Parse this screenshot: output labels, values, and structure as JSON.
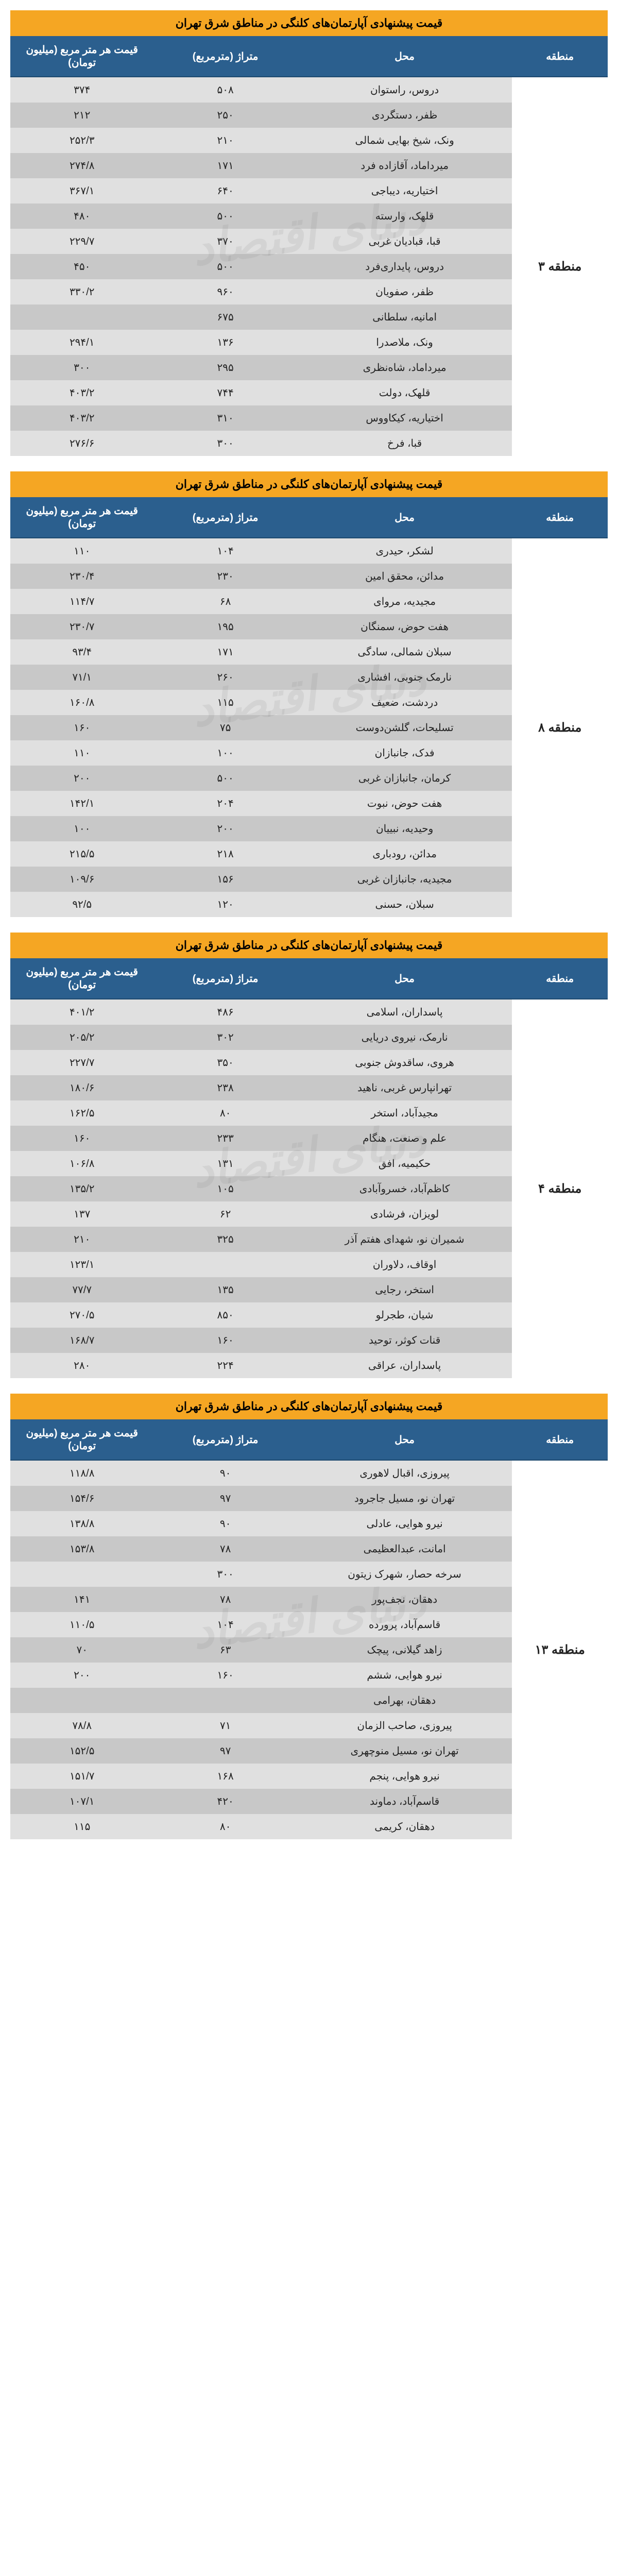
{
  "watermark_text": "دنیای اقتصاد",
  "colors": {
    "title_bg": "#f5a623",
    "header_bg": "#2b5f8e",
    "header_fg": "#ffffff",
    "row_odd": "#e0e0e0",
    "row_even": "#c8c8c8",
    "region_bg": "#ffffff"
  },
  "columns": {
    "region": "منطقه",
    "place": "محل",
    "area": "متراژ (مترمربع)",
    "price": "قیمت هر متر مربع (میلیون تومان)"
  },
  "tables": [
    {
      "title": "قیمت پیشنهادی آپارتمان‌های کلنگی در مناطق شرق تهران",
      "region": "منطقه ۳",
      "rows": [
        {
          "place": "دروس، راستوان",
          "area": "۵۰۸",
          "price": "۳۷۴"
        },
        {
          "place": "ظفر، دستگردی",
          "area": "۲۵۰",
          "price": "۲۱۲"
        },
        {
          "place": "ونک، شیخ بهایی شمالی",
          "area": "۲۱۰",
          "price": "۲۵۲/۳"
        },
        {
          "place": "میرداماد، آقازاده فرد",
          "area": "۱۷۱",
          "price": "۲۷۴/۸"
        },
        {
          "place": "اختیاریه، دیباجی",
          "area": "۶۴۰",
          "price": "۳۶۷/۱"
        },
        {
          "place": "قلهک، وارسته",
          "area": "۵۰۰",
          "price": "۴۸۰"
        },
        {
          "place": "قبا، قبادیان غربی",
          "area": "۳۷۰",
          "price": "۲۲۹/۷"
        },
        {
          "place": "دروس، پایداری‌فرد",
          "area": "۵۰۰",
          "price": "۴۵۰"
        },
        {
          "place": "ظفر، صفویان",
          "area": "۹۶۰",
          "price": "۳۳۰/۲"
        },
        {
          "place": "امانیه، سلطانی",
          "area": "۶۷۵",
          "price": ""
        },
        {
          "place": "ونک، ملاصدرا",
          "area": "۱۳۶",
          "price": "۲۹۴/۱"
        },
        {
          "place": "میرداماد، شاه‌نظری",
          "area": "۲۹۵",
          "price": "۳۰۰"
        },
        {
          "place": "قلهک، دولت",
          "area": "۷۴۴",
          "price": "۴۰۳/۲"
        },
        {
          "place": "اختیاریه، کیکاووس",
          "area": "۳۱۰",
          "price": "۴۰۳/۲"
        },
        {
          "place": "قبا، فرخ",
          "area": "۳۰۰",
          "price": "۲۷۶/۶"
        }
      ]
    },
    {
      "title": "قیمت پیشنهادی آپارتمان‌های کلنگی در مناطق شرق تهران",
      "region": "منطقه ۸",
      "rows": [
        {
          "place": "لشکر، حیدری",
          "area": "۱۰۴",
          "price": "۱۱۰"
        },
        {
          "place": "مدائن، محقق امین",
          "area": "۲۳۰",
          "price": "۲۳۰/۴"
        },
        {
          "place": "مجیدیه، مروای",
          "area": "۶۸",
          "price": "۱۱۴/۷"
        },
        {
          "place": "هفت حوض، سمنگان",
          "area": "۱۹۵",
          "price": "۲۳۰/۷"
        },
        {
          "place": "سبلان شمالی، سادگی",
          "area": "۱۷۱",
          "price": "۹۳/۴"
        },
        {
          "place": "نارمک جنوبی، افشاری",
          "area": "۲۶۰",
          "price": "۷۱/۱"
        },
        {
          "place": "دردشت، ضعیف",
          "area": "۱۱۵",
          "price": "۱۶۰/۸"
        },
        {
          "place": "تسلیحات، گلشن‌دوست",
          "area": "۷۵",
          "price": "۱۶۰"
        },
        {
          "place": "فدک، جانبازان",
          "area": "۱۰۰",
          "price": "۱۱۰"
        },
        {
          "place": "کرمان، جانبازان غربی",
          "area": "۵۰۰",
          "price": "۲۰۰"
        },
        {
          "place": "هفت حوض، نبوت",
          "area": "۲۰۴",
          "price": "۱۴۲/۱"
        },
        {
          "place": "وحیدیه، نبییان",
          "area": "۲۰۰",
          "price": "۱۰۰"
        },
        {
          "place": "مدائن، رودباری",
          "area": "۲۱۸",
          "price": "۲۱۵/۵"
        },
        {
          "place": "مجیدیه، جانبازان غربی",
          "area": "۱۵۶",
          "price": "۱۰۹/۶"
        },
        {
          "place": "سبلان، حسنی",
          "area": "۱۲۰",
          "price": "۹۲/۵"
        }
      ]
    },
    {
      "title": "قیمت پیشنهادی آپارتمان‌های کلنگی در مناطق شرق تهران",
      "region": "منطقه ۴",
      "rows": [
        {
          "place": "پاسداران، اسلامی",
          "area": "۴۸۶",
          "price": "۴۰۱/۲"
        },
        {
          "place": "نارمک، نیروی دریایی",
          "area": "۳۰۲",
          "price": "۲۰۵/۲"
        },
        {
          "place": "هروی، ساقدوش جنوبی",
          "area": "۳۵۰",
          "price": "۲۲۷/۷"
        },
        {
          "place": "تهرانپارس غربی، ناهید",
          "area": "۲۳۸",
          "price": "۱۸۰/۶"
        },
        {
          "place": "مجیدآباد، استخر",
          "area": "۸۰",
          "price": "۱۶۲/۵"
        },
        {
          "place": "علم و صنعت، هنگام",
          "area": "۲۳۳",
          "price": "۱۶۰"
        },
        {
          "place": "حکیمیه، افق",
          "area": "۱۳۱",
          "price": "۱۰۶/۸"
        },
        {
          "place": "کاظم‌آباد، خسروآبادی",
          "area": "۱۰۵",
          "price": "۱۳۵/۲"
        },
        {
          "place": "لویزان، فرشادی",
          "area": "۶۲",
          "price": "۱۳۷"
        },
        {
          "place": "شمیران نو، شهدای هفتم آذر",
          "area": "۳۲۵",
          "price": "۲۱۰"
        },
        {
          "place": "اوقاف، دلاوران",
          "area": "",
          "price": "۱۲۳/۱"
        },
        {
          "place": "استخر، رجایی",
          "area": "۱۳۵",
          "price": "۷۷/۷"
        },
        {
          "place": "شیان، طجرلو",
          "area": "۸۵۰",
          "price": "۲۷۰/۵"
        },
        {
          "place": "قنات کوثر، توحید",
          "area": "۱۶۰",
          "price": "۱۶۸/۷"
        },
        {
          "place": "پاسداران، عراقی",
          "area": "۲۲۴",
          "price": "۲۸۰"
        }
      ]
    },
    {
      "title": "قیمت پیشنهادی آپارتمان‌های کلنگی در مناطق شرق تهران",
      "region": "منطقه ۱۳",
      "rows": [
        {
          "place": "پیروزی، اقبال لاهوری",
          "area": "۹۰",
          "price": "۱۱۸/۸"
        },
        {
          "place": "تهران نو، مسیل جاجرود",
          "area": "۹۷",
          "price": "۱۵۴/۶"
        },
        {
          "place": "نیرو هوایی، عادلی",
          "area": "۹۰",
          "price": "۱۳۸/۸"
        },
        {
          "place": "امانت، عبدالعظیمی",
          "area": "۷۸",
          "price": "۱۵۳/۸"
        },
        {
          "place": "سرخه حصار، شهرک زیتون",
          "area": "۳۰۰",
          "price": ""
        },
        {
          "place": "دهقان، نجف‌پور",
          "area": "۷۸",
          "price": "۱۴۱"
        },
        {
          "place": "قاسم‌آباد، پرورده",
          "area": "۱۰۴",
          "price": "۱۱۰/۵"
        },
        {
          "place": "زاهد گیلانی، پیچک",
          "area": "۶۳",
          "price": "۷۰"
        },
        {
          "place": "نیرو هوایی، ششم",
          "area": "۱۶۰",
          "price": "۲۰۰"
        },
        {
          "place": "دهقان، بهرامی",
          "area": "",
          "price": ""
        },
        {
          "place": "پیروزی، صاحب الزمان",
          "area": "۷۱",
          "price": "۷۸/۸"
        },
        {
          "place": "تهران نو، مسیل منوچهری",
          "area": "۹۷",
          "price": "۱۵۲/۵"
        },
        {
          "place": "نیرو هوایی، پنجم",
          "area": "۱۶۸",
          "price": "۱۵۱/۷"
        },
        {
          "place": "قاسم‌آباد، دماوند",
          "area": "۴۲۰",
          "price": "۱۰۷/۱"
        },
        {
          "place": "دهقان، کریمی",
          "area": "۸۰",
          "price": "۱۱۵"
        }
      ]
    }
  ]
}
